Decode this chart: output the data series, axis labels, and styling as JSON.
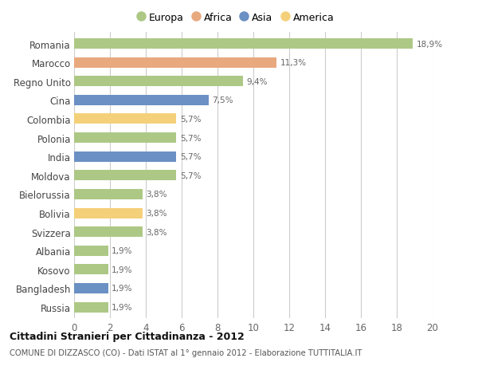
{
  "countries": [
    "Romania",
    "Marocco",
    "Regno Unito",
    "Cina",
    "Colombia",
    "Polonia",
    "India",
    "Moldova",
    "Bielorussia",
    "Bolivia",
    "Svizzera",
    "Albania",
    "Kosovo",
    "Bangladesh",
    "Russia"
  ],
  "values": [
    18.9,
    11.3,
    9.4,
    7.5,
    5.7,
    5.7,
    5.7,
    5.7,
    3.8,
    3.8,
    3.8,
    1.9,
    1.9,
    1.9,
    1.9
  ],
  "labels": [
    "18,9%",
    "11,3%",
    "9,4%",
    "7,5%",
    "5,7%",
    "5,7%",
    "5,7%",
    "5,7%",
    "3,8%",
    "3,8%",
    "3,8%",
    "1,9%",
    "1,9%",
    "1,9%",
    "1,9%"
  ],
  "continents": [
    "Europa",
    "Africa",
    "Europa",
    "Asia",
    "America",
    "Europa",
    "Asia",
    "Europa",
    "Europa",
    "America",
    "Europa",
    "Europa",
    "Europa",
    "Asia",
    "Europa"
  ],
  "colors": {
    "Europa": "#adc885",
    "Africa": "#e8a97e",
    "Asia": "#6b90c4",
    "America": "#f5d07a"
  },
  "xlim": [
    0,
    20
  ],
  "xticks": [
    0,
    2,
    4,
    6,
    8,
    10,
    12,
    14,
    16,
    18,
    20
  ],
  "title": "Cittadini Stranieri per Cittadinanza - 2012",
  "subtitle": "COMUNE DI DIZZASCO (CO) - Dati ISTAT al 1° gennaio 2012 - Elaborazione TUTTITALIA.IT",
  "bg_color": "#ffffff",
  "grid_color": "#cccccc",
  "bar_height": 0.55,
  "legend_order": [
    "Europa",
    "Africa",
    "Asia",
    "America"
  ]
}
